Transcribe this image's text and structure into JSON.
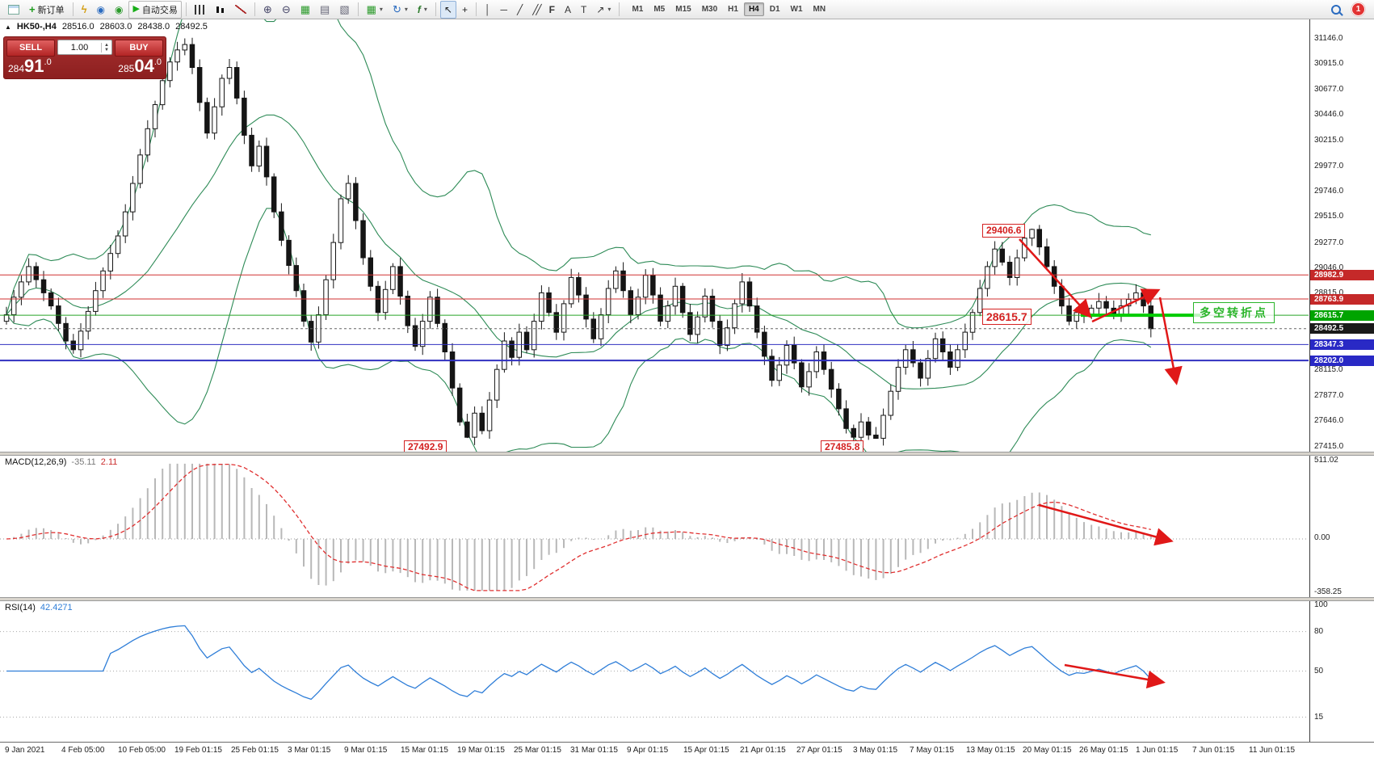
{
  "toolbar": {
    "new_order_label": "新订单",
    "auto_trading_label": "自动交易",
    "timeframes": [
      "M1",
      "M5",
      "M15",
      "M30",
      "H1",
      "H4",
      "D1",
      "W1",
      "MN"
    ],
    "active_timeframe": "H4",
    "notification_count": "1"
  },
  "chart_header": {
    "collapse_arrow": "▲",
    "symbol_period": "HK50-,H4",
    "open": "28516.0",
    "high": "28603.0",
    "low": "28438.0",
    "close": "28492.5"
  },
  "trade_panel": {
    "sell_label": "SELL",
    "buy_label": "BUY",
    "volume": "1.00",
    "sell_price": "28491.0",
    "buy_price": "28504.0"
  },
  "price_axis": {
    "labels": [
      "31146.0",
      "30915.0",
      "30677.0",
      "30446.0",
      "30215.0",
      "29977.0",
      "29746.0",
      "29515.0",
      "29277.0",
      "29046.0",
      "28815.0",
      "28577.0",
      "28346.0",
      "28115.0",
      "27877.0",
      "27646.0",
      "27415.0"
    ],
    "tags": [
      {
        "text": "28982.9",
        "bg": "#c52929",
        "fg": "#ffffff",
        "price": 28982.9
      },
      {
        "text": "28763.9",
        "bg": "#c52929",
        "fg": "#ffffff",
        "price": 28763.9
      },
      {
        "text": "28615.7",
        "bg": "#00a400",
        "fg": "#ffffff",
        "price": 28615.7
      },
      {
        "text": "28492.5",
        "bg": "#1a1a1a",
        "fg": "#ffffff",
        "price": 28492.5
      },
      {
        "text": "28347.3",
        "bg": "#2929c5",
        "fg": "#ffffff",
        "price": 28347.3
      },
      {
        "text": "28202.0",
        "bg": "#2929c5",
        "fg": "#ffffff",
        "price": 28202.0
      }
    ]
  },
  "annotations": {
    "swing_high": "29406.6",
    "support_mid": "28615.7",
    "swing_low_1": "27492.9",
    "swing_low_2": "27485.8",
    "turning_point": "多空转折点"
  },
  "macd_panel": {
    "label": "MACD(12,26,9)",
    "value_main": "-35.11",
    "value_signal": "2.11",
    "axis_labels": [
      "511.02",
      "0.00",
      "-358.25"
    ]
  },
  "rsi_panel": {
    "label": "RSI(14)",
    "value": "42.4271",
    "axis_labels": [
      "100",
      "80",
      "50",
      "15"
    ]
  },
  "time_axis": {
    "labels": [
      "9 Jan 2021",
      "4 Feb 05:00",
      "10 Feb 05:00",
      "19 Feb 01:15",
      "25 Feb 01:15",
      "3 Mar 01:15",
      "9 Mar 01:15",
      "15 Mar 01:15",
      "19 Mar 01:15",
      "25 Mar 01:15",
      "31 Mar 01:15",
      "9 Apr 01:15",
      "15 Apr 01:15",
      "21 Apr 01:15",
      "27 Apr 01:15",
      "3 May 01:15",
      "7 May 01:15",
      "13 May 01:15",
      "20 May 01:15",
      "26 May 01:15",
      "1 Jun 01:15",
      "7 Jun 01:15",
      "11 Jun 01:15"
    ]
  },
  "chart_data": {
    "type": "candlestick",
    "symbol": "HK50-",
    "timeframe": "H4",
    "y_axis_range": [
      27415,
      31146
    ],
    "price_levels": [
      {
        "price": 28982.9,
        "color": "#d03030",
        "style": "solid",
        "width": 1
      },
      {
        "price": 28763.9,
        "color": "#d03030",
        "style": "solid",
        "width": 1
      },
      {
        "price": 28615.7,
        "color": "#28a428",
        "style": "solid",
        "width": 1
      },
      {
        "price": 28492.5,
        "color": "#666666",
        "style": "dotted",
        "width": 1
      },
      {
        "price": 28347.3,
        "color": "#3030c0",
        "style": "solid",
        "width": 1
      },
      {
        "price": 28202.0,
        "color": "#3030c0",
        "style": "solid",
        "width": 2
      }
    ],
    "trend_segment": {
      "price": 28615.7,
      "color": "#00cc00"
    },
    "bollinger": {
      "period": 20,
      "deviation": 2,
      "color": "#2e8b57"
    },
    "macd": {
      "fast": 12,
      "slow": 26,
      "signal": 9,
      "axis": [
        511.02,
        0.0,
        -358.25
      ]
    },
    "rsi": {
      "period": 14,
      "levels": [
        80,
        50,
        15
      ]
    },
    "closes": [
      28620,
      28780,
      28920,
      29060,
      28940,
      28820,
      28700,
      28540,
      28380,
      28300,
      28470,
      28650,
      28840,
      29020,
      29180,
      29340,
      29560,
      29820,
      30080,
      30320,
      30540,
      30760,
      30930,
      31040,
      31090,
      30880,
      30560,
      30280,
      30520,
      30780,
      30880,
      30600,
      30260,
      29980,
      30160,
      29880,
      29560,
      29300,
      29070,
      28840,
      28560,
      28370,
      28620,
      28940,
      29280,
      29680,
      29820,
      29480,
      29140,
      28880,
      28640,
      28850,
      29060,
      28790,
      28520,
      28330,
      28560,
      28780,
      28540,
      28280,
      27950,
      27640,
      27500,
      27720,
      27560,
      27840,
      28120,
      28380,
      28230,
      28460,
      28300,
      28560,
      28820,
      28640,
      28460,
      28720,
      28960,
      28800,
      28580,
      28400,
      28620,
      28860,
      29020,
      28840,
      28620,
      28780,
      28980,
      28800,
      28560,
      28700,
      28880,
      28640,
      28440,
      28600,
      28790,
      28560,
      28340,
      28500,
      28720,
      28920,
      28700,
      28460,
      28240,
      28020,
      28160,
      28340,
      28180,
      27960,
      28100,
      28280,
      28120,
      27940,
      27760,
      27580,
      27500,
      27640,
      27520,
      27490,
      27700,
      27920,
      28140,
      28300,
      28180,
      28040,
      28220,
      28400,
      28280,
      28140,
      28300,
      28460,
      28640,
      28860,
      29060,
      29220,
      29100,
      28960,
      29140,
      29320,
      29400,
      29240,
      29060,
      28880,
      28700,
      28560,
      28640,
      28620,
      28680,
      28740,
      28680,
      28620,
      28700,
      28760,
      28820,
      28700,
      28492
    ],
    "forced_extremes": {
      "24": {
        "high": 31146.0
      },
      "62": {
        "low": 27492.9
      },
      "117": {
        "low": 27485.8
      },
      "138": {
        "high": 29406.6
      }
    }
  }
}
